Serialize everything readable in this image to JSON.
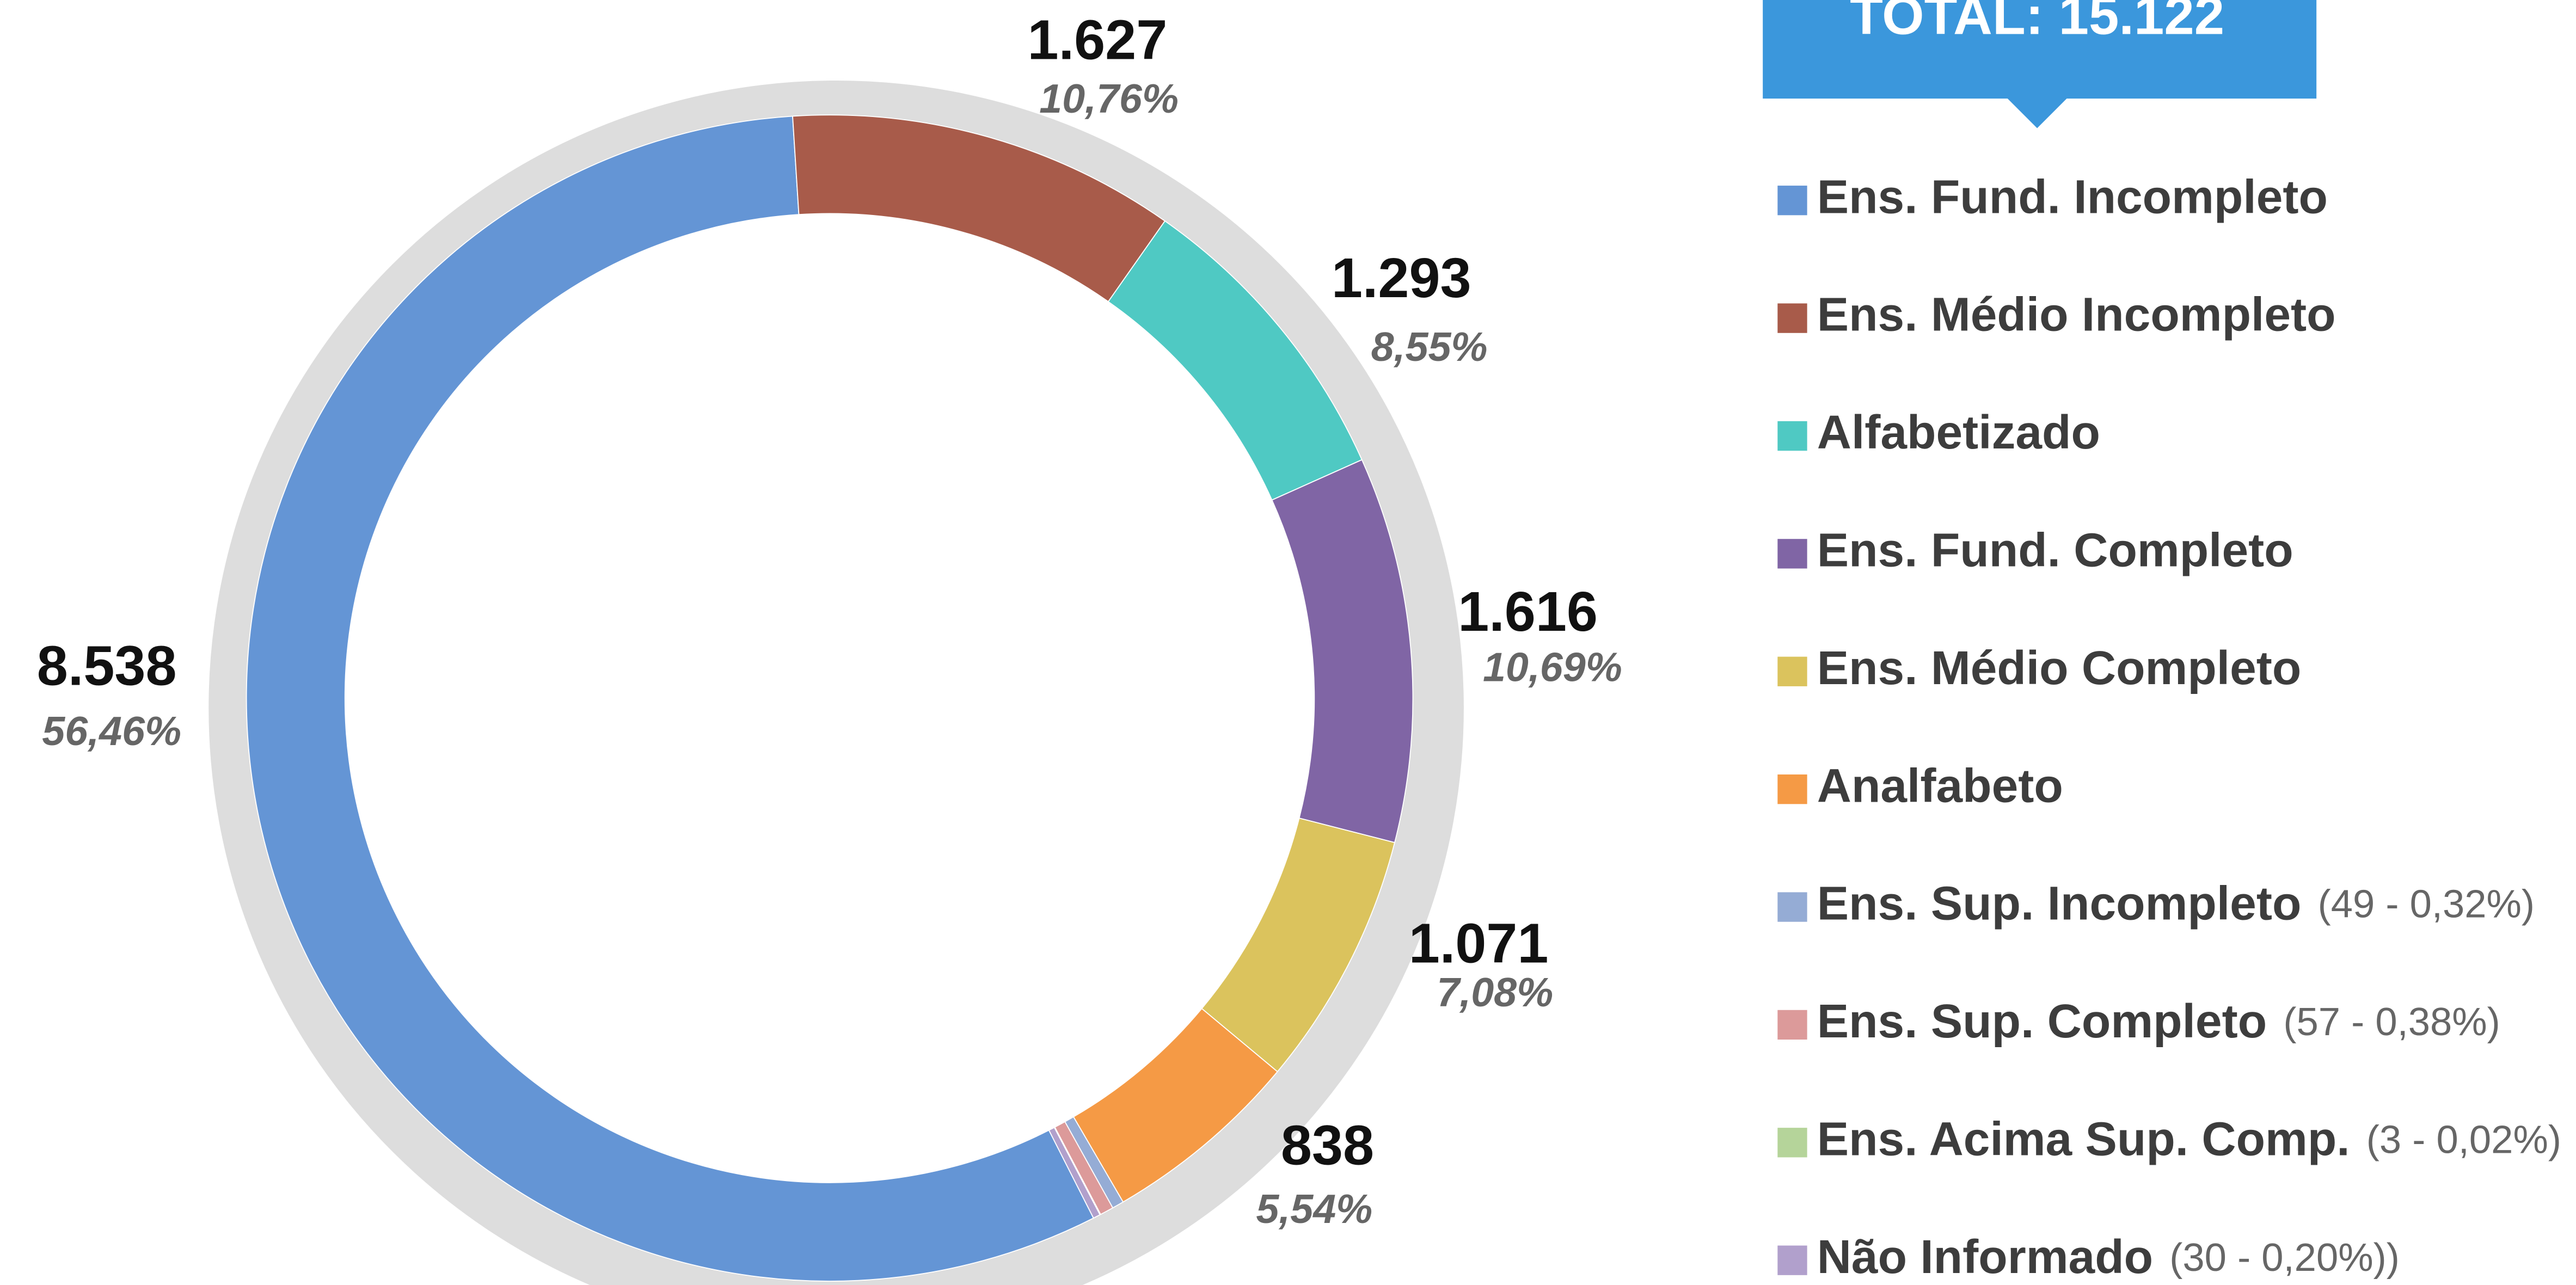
{
  "chart_data": {
    "type": "donut",
    "total_label": "TOTAL: 15.122",
    "categories": [
      "Ens. Fund. Incompleto",
      "Ens. Médio Incompleto",
      "Alfabetizado",
      "Ens. Fund. Completo",
      "Ens. Médio Completo",
      "Analfabeto",
      "Ens. Sup. Incompleto",
      "Ens. Sup. Completo",
      "Ens. Acima Sup. Comp.",
      "Não Informado"
    ],
    "values": [
      8538,
      1627,
      1293,
      1616,
      1071,
      838,
      49,
      57,
      3,
      30
    ],
    "value_labels": [
      "8.538",
      "1.627",
      "1.293",
      "1.616",
      "1.071",
      "838",
      null,
      null,
      null,
      null
    ],
    "percent_labels": [
      "56,46%",
      "10,76%",
      "8,55%",
      "10,69%",
      "7,08%",
      "5,54%",
      null,
      null,
      null,
      null
    ],
    "legend_notes": [
      null,
      null,
      null,
      null,
      null,
      null,
      "(49 - 0,32%)",
      "(57 - 0,38%)",
      "(3 - 0,02%)",
      "(30 - 0,20%))"
    ],
    "colors": [
      "#6495d5",
      "#a85b4a",
      "#4fc9c3",
      "#8065a5",
      "#dbc35d",
      "#f59a45",
      "#95acd5",
      "#dc9a9a",
      "#b5d49a",
      "#b1a0cc"
    ]
  }
}
